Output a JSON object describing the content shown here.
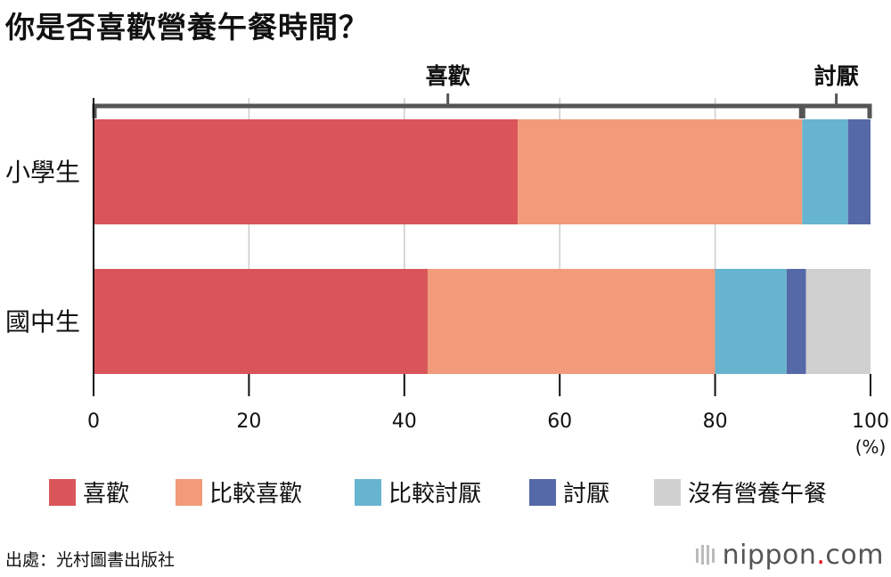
{
  "title": "你是否喜歡營養午餐時間？",
  "source": "出處：光村圖書出版社",
  "brand": {
    "name": "nippon",
    "dot": ".",
    "suffix": "com"
  },
  "colors": {
    "like": "#d9555a",
    "somewhat_like": "#f19b7b",
    "somewhat_dislike": "#66b4cf",
    "dislike": "#5569a8",
    "no_lunch": "#d0d0d0"
  },
  "chart_data": {
    "type": "bar",
    "orientation": "horizontal",
    "stacked": true,
    "title": "你是否喜歡營養午餐時間？",
    "categories": [
      "小學生",
      "國中生"
    ],
    "series": [
      {
        "name": "喜歡",
        "values": [
          54.6,
          43.0
        ]
      },
      {
        "name": "比較喜歡",
        "values": [
          36.6,
          37.0
        ]
      },
      {
        "name": "比較討厭",
        "values": [
          5.9,
          9.2
        ]
      },
      {
        "name": "討厭",
        "values": [
          2.9,
          2.5
        ]
      },
      {
        "name": "沒有營養午餐",
        "values": [
          0,
          8.3
        ]
      }
    ],
    "xlim": [
      0,
      100
    ],
    "xticks": [
      "0",
      "20",
      "40",
      "60",
      "80",
      "100"
    ],
    "x_unit": "(%)",
    "grid": true,
    "legend_position": "bottom",
    "brackets": [
      {
        "label": "喜歡",
        "from": 0,
        "to": 91.2
      },
      {
        "label": "討厭",
        "from": 91.2,
        "to": 100
      }
    ]
  }
}
